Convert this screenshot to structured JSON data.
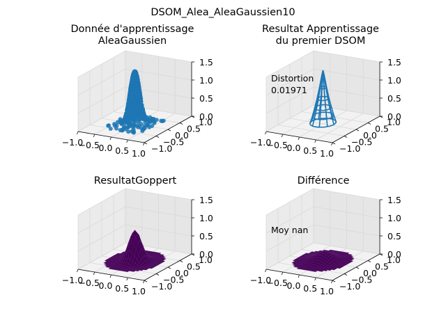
{
  "figure_title": "DSOM_Alea_AleaGaussien10",
  "colors": {
    "scatter": "#1f77b4",
    "wire": "#1f77b4",
    "surface": "#440154",
    "surface_edge": "#5a1a6e",
    "pane": "#f2f2f2",
    "grid": "#d9d9d9",
    "axis": "#000000"
  },
  "chart_data": [
    {
      "type": "scatter3d",
      "title_line1": "Donnée d'apprentissage",
      "title_line2": "AleaGaussien",
      "annotation_line1": "",
      "annotation_line2": "",
      "xlim": [
        -1.0,
        1.0
      ],
      "ylim": [
        -1.0,
        1.0
      ],
      "zlim": [
        0.0,
        1.5
      ],
      "x_ticks": [
        "−1.0",
        "−0.5",
        "0.0",
        "0.5",
        "1.0"
      ],
      "y_ticks": [
        "−1.0",
        "−0.5",
        "0.0",
        "0.5",
        "1.0"
      ],
      "z_ticks": [
        "0.0",
        "0.5",
        "1.0",
        "1.5"
      ],
      "description_of_data": "z = exp(-(x^2+y^2)/(2*0.1^2)) gaussian bump sampled at random points"
    },
    {
      "type": "wireframe3d",
      "title_line1": "Resultat Apprentissage",
      "title_line2": "du premier DSOM",
      "annotation_line1": "Distortion",
      "annotation_line2": "0.01971",
      "xlim": [
        -1.0,
        1.0
      ],
      "ylim": [
        -1.0,
        1.0
      ],
      "zlim": [
        0.0,
        1.5
      ],
      "x_ticks": [
        "−1.0",
        "−0.5",
        "0.0",
        "0.5",
        "1.0"
      ],
      "y_ticks": [
        "−1.0",
        "−0.5",
        "0.0",
        "0.5",
        "1.0"
      ],
      "z_ticks": [
        "0.0",
        "0.5",
        "1.0",
        "1.5"
      ],
      "distortion": 0.01971
    },
    {
      "type": "surface3d",
      "title_line1": "ResultatGoppert",
      "title_line2": "",
      "annotation_line1": "",
      "annotation_line2": "",
      "xlim": [
        -1.0,
        1.0
      ],
      "ylim": [
        -1.0,
        1.0
      ],
      "zlim": [
        0.0,
        1.5
      ],
      "x_ticks": [
        "−1.0",
        "−0.5",
        "0.0",
        "0.5",
        "1.0"
      ],
      "y_ticks": [
        "−1.0",
        "−0.5",
        "0.0",
        "0.5",
        "1.0"
      ],
      "z_ticks": [
        "0.0",
        "0.5",
        "1.0",
        "1.5"
      ],
      "peak_height": 0.85
    },
    {
      "type": "surface3d",
      "title_line1": "Différence",
      "title_line2": "",
      "annotation_line1": "Moy nan",
      "annotation_line2": "",
      "xlim": [
        -1.0,
        1.0
      ],
      "ylim": [
        -1.0,
        1.0
      ],
      "zlim": [
        0.0,
        1.5
      ],
      "x_ticks": [
        "−1.0",
        "−0.5",
        "0.0",
        "0.5",
        "1.0"
      ],
      "y_ticks": [
        "−1.0",
        "−0.5",
        "0.0",
        "0.5",
        "1.0"
      ],
      "z_ticks": [
        "0.0",
        "0.5",
        "1.0",
        "1.5"
      ],
      "peak_height": 0.25
    }
  ]
}
